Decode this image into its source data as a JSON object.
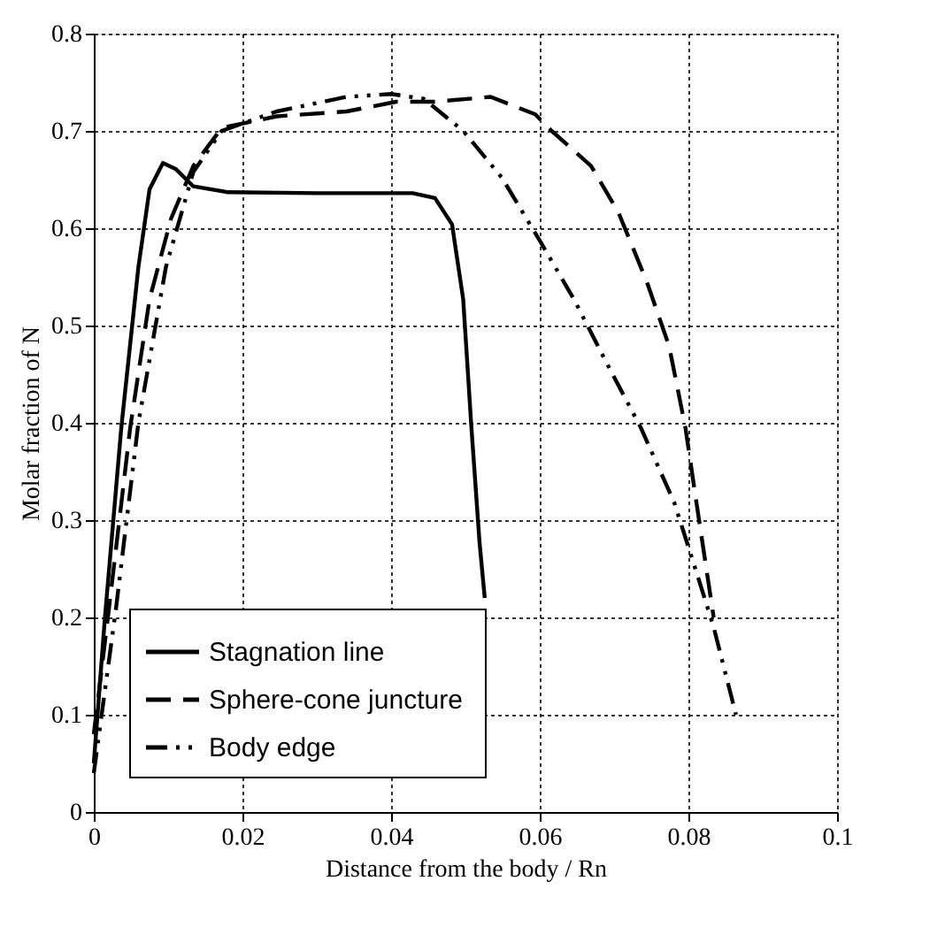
{
  "chart_data": {
    "type": "line",
    "xlabel": "Distance from the body / Rn",
    "ylabel": "Molar fraction of N",
    "xlim": [
      0,
      0.1
    ],
    "xticks": [
      0,
      0.02,
      0.04,
      0.06,
      0.08,
      0.1
    ],
    "ylim": [
      0,
      0.8
    ],
    "yticks": [
      0,
      0.1,
      0.2,
      0.3,
      0.4,
      0.5,
      0.6,
      0.7,
      0.8
    ],
    "grid": true,
    "legend": "bottom left",
    "series": [
      {
        "name": "Stagnation line",
        "color": "#000000",
        "line_style": "solid",
        "x": [
          0,
          0.0015,
          0.0037,
          0.006,
          0.0075,
          0.0093,
          0.011,
          0.0134,
          0.018,
          0.03,
          0.0429,
          0.0459,
          0.0482,
          0.0497,
          0.0508,
          0.0519,
          0.0526
        ],
        "values": [
          0.05,
          0.2,
          0.395,
          0.56,
          0.64,
          0.667,
          0.661,
          0.643,
          0.637,
          0.636,
          0.636,
          0.631,
          0.604,
          0.527,
          0.396,
          0.277,
          0.22
        ]
      },
      {
        "name": "Sphere-cone  juncture",
        "color": "#000000",
        "line_style": "dashed",
        "x": [
          0,
          0.0019,
          0.0049,
          0.0075,
          0.0104,
          0.0134,
          0.0172,
          0.0246,
          0.034,
          0.0407,
          0.0459,
          0.0534,
          0.0594,
          0.0616,
          0.0669,
          0.0706,
          0.0744,
          0.0774,
          0.0796,
          0.0811,
          0.0834
        ],
        "values": [
          0.08,
          0.2,
          0.395,
          0.527,
          0.61,
          0.664,
          0.703,
          0.715,
          0.72,
          0.73,
          0.73,
          0.735,
          0.717,
          0.7,
          0.664,
          0.616,
          0.545,
          0.479,
          0.395,
          0.317,
          0.2
        ]
      },
      {
        "name": "Body edge",
        "color": "#000000",
        "line_style": "dashdot",
        "x": [
          0,
          0.003,
          0.006,
          0.0097,
          0.0134,
          0.0172,
          0.0246,
          0.034,
          0.04,
          0.0444,
          0.0497,
          0.0549,
          0.0601,
          0.0646,
          0.0691,
          0.0736,
          0.0781,
          0.0811,
          0.0834,
          0.0864
        ],
        "values": [
          0.04,
          0.21,
          0.4,
          0.56,
          0.658,
          0.7,
          0.72,
          0.735,
          0.738,
          0.733,
          0.7,
          0.652,
          0.586,
          0.527,
          0.46,
          0.395,
          0.318,
          0.246,
          0.19,
          0.1
        ]
      }
    ]
  }
}
